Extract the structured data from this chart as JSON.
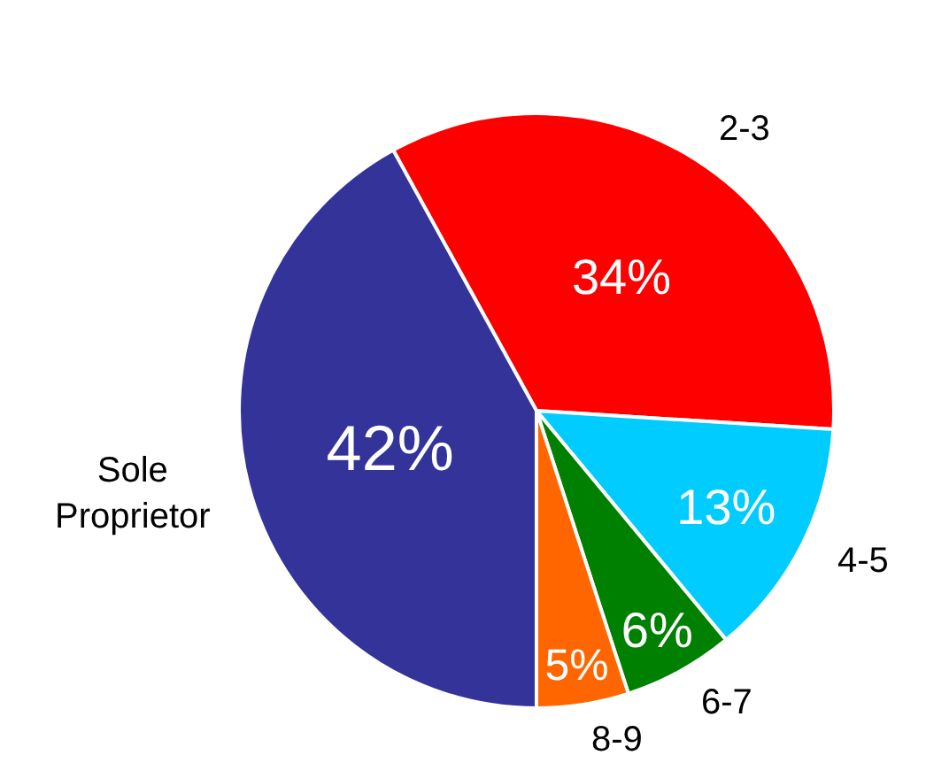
{
  "chart_data": {
    "type": "pie",
    "categories": [
      "2-3",
      "4-5",
      "6-7",
      "8-9",
      "Sole Proprietor"
    ],
    "values": [
      34,
      13,
      6,
      5,
      42
    ],
    "colors": [
      "#ff0000",
      "#00ccff",
      "#008000",
      "#ff6600",
      "#333399"
    ],
    "value_labels": [
      "34%",
      "13%",
      "6%",
      "5%",
      "42%"
    ],
    "legend": false
  }
}
